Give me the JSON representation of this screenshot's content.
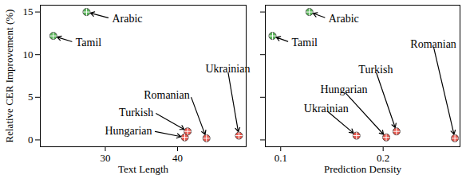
{
  "chart_data": [
    {
      "type": "scatter",
      "x_label": "Text Length",
      "y_label": "Relative CER Improvement (%)",
      "labels": [
        "Arabic",
        "Tamil",
        "Hungarian",
        "Turkish",
        "Romanian",
        "Ukrainian"
      ],
      "x": [
        27.4,
        22.8,
        41.0,
        41.4,
        44.0,
        48.5
      ],
      "values": [
        15.0,
        12.2,
        0.3,
        1.0,
        0.2,
        0.5
      ],
      "colors": [
        "#5cb85c",
        "#5cb85c",
        "#e8594f",
        "#e8594f",
        "#e8594f",
        "#e8594f"
      ],
      "marker": "circle",
      "xlim": [
        21,
        49.5
      ],
      "xticks": [
        30,
        40
      ],
      "ylim": [
        -0.8,
        15.8
      ],
      "yticks": [
        0,
        5,
        10,
        15
      ]
    },
    {
      "type": "scatter",
      "x_label": "Prediction Density",
      "labels": [
        "Arabic",
        "Tamil",
        "Ukrainian",
        "Hungarian",
        "Turkish",
        "Romanian"
      ],
      "x": [
        0.128,
        0.092,
        0.174,
        0.203,
        0.213,
        0.27
      ],
      "values": [
        15.0,
        12.2,
        0.5,
        0.3,
        1.0,
        0.2
      ],
      "colors": [
        "#5cb85c",
        "#5cb85c",
        "#e8594f",
        "#e8594f",
        "#e8594f",
        "#e8594f"
      ],
      "marker": "circle",
      "xlim": [
        0.085,
        0.275
      ],
      "xticks": [
        0.1,
        0.2
      ],
      "ylim": [
        -0.8,
        15.8
      ],
      "yticks": [
        0,
        5,
        10,
        15
      ],
      "tick_labels": "x"
    }
  ]
}
